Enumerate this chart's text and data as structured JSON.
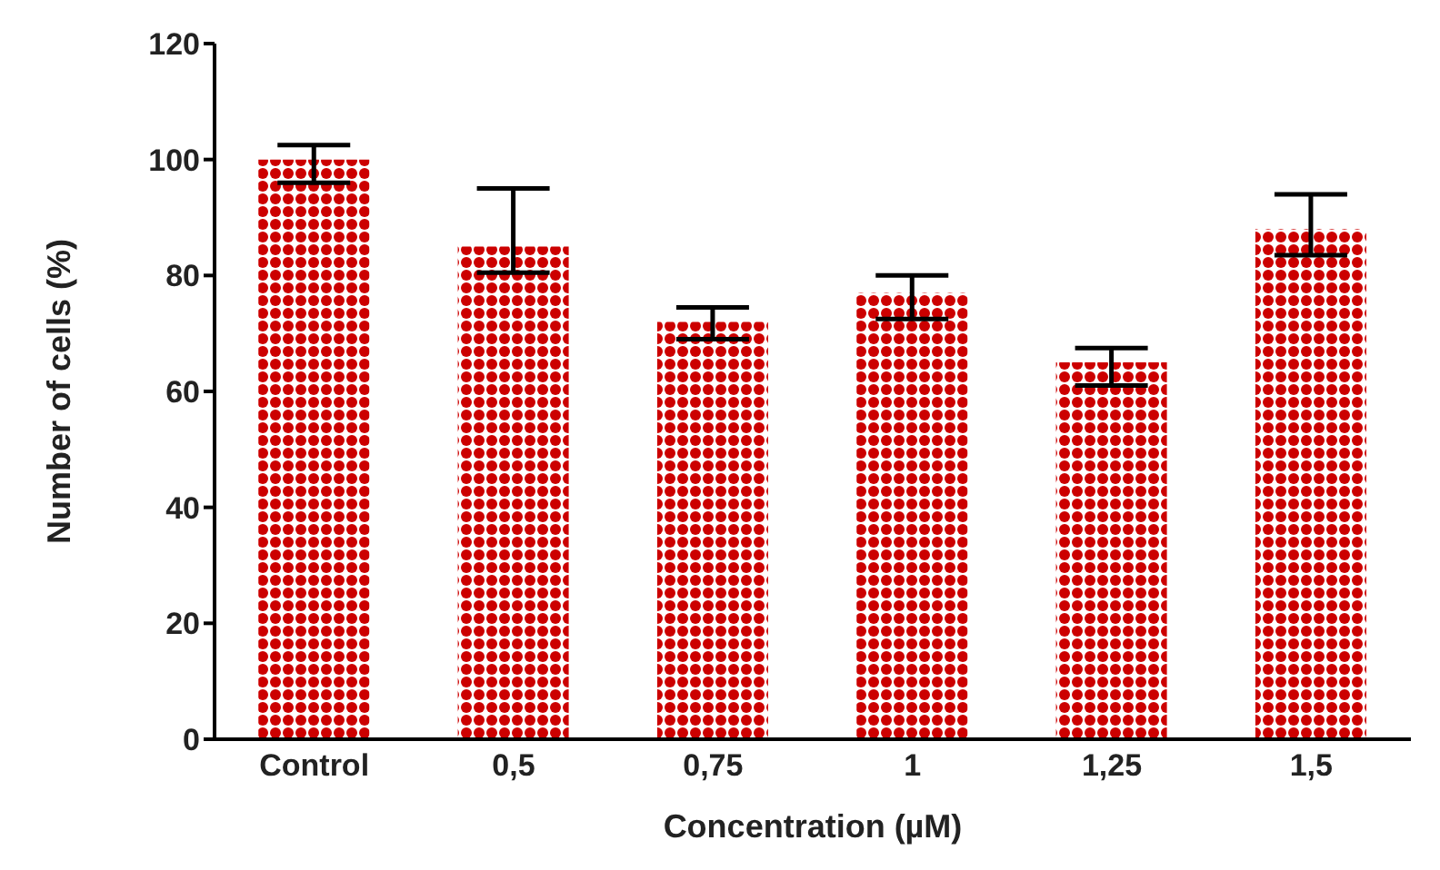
{
  "chart_data": {
    "type": "bar",
    "xlabel": "Concentration (µM)",
    "ylabel": "Number of cells (%)",
    "categories": [
      "Control",
      "0,5",
      "0,75",
      "1",
      "1,25",
      "1,5"
    ],
    "series": [
      {
        "color": "#cc0000",
        "values": [
          100,
          85,
          72,
          77,
          65,
          88
        ],
        "errors": [
          [
            96,
            102.5
          ],
          [
            80.5,
            95
          ],
          [
            69,
            74.5
          ],
          [
            72.5,
            80
          ],
          [
            61,
            67.5
          ],
          [
            83.5,
            94
          ]
        ]
      }
    ],
    "ylim": [
      0,
      120
    ],
    "yticks": [
      0,
      20,
      40,
      60,
      80,
      100,
      120
    ],
    "grid": false,
    "legend": false
  }
}
